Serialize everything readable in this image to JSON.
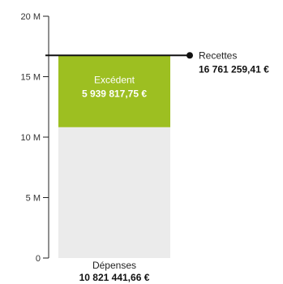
{
  "chart_data": {
    "type": "bar",
    "ylim": [
      0,
      20000000
    ],
    "y_ticks": [
      {
        "value": 0,
        "label": "0"
      },
      {
        "value": 5000000,
        "label": "5 M"
      },
      {
        "value": 10000000,
        "label": "10 M"
      },
      {
        "value": 15000000,
        "label": "15 M"
      },
      {
        "value": 20000000,
        "label": "20 M"
      }
    ],
    "depenses": {
      "label": "Dépenses",
      "value": 10821441.66,
      "value_label": "10 821 441,66 €"
    },
    "excedent": {
      "label": "Excédent",
      "value": 5939817.75,
      "value_label": "5 939 817,75 €"
    },
    "recettes": {
      "label": "Recettes",
      "value": 16761259.41,
      "value_label": "16 761 259,41 €"
    },
    "grid": false
  },
  "colors": {
    "depenses": "#ebebeb",
    "excedent": "#9dbf21",
    "recettes_line": "#111111",
    "axis": "#222222"
  }
}
